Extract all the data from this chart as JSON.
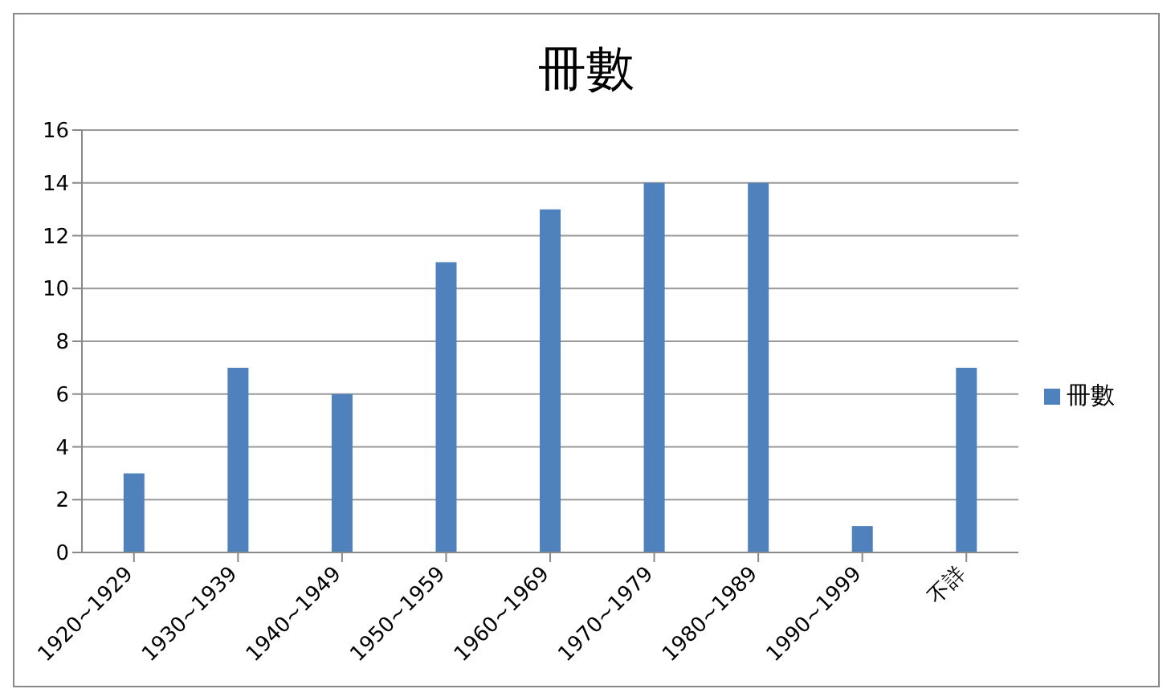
{
  "chart_data": {
    "type": "bar",
    "title": "冊數",
    "categories": [
      "1920~1929",
      "1930~1939",
      "1940~1949",
      "1950~1959",
      "1960~1969",
      "1970~1979",
      "1980~1989",
      "1990~1999",
      "不詳"
    ],
    "series": [
      {
        "name": "冊數",
        "color": "#4f81bd",
        "values": [
          3,
          7,
          6,
          11,
          13,
          14,
          14,
          1,
          7
        ]
      }
    ],
    "ylim": [
      0,
      16
    ],
    "yticks": [
      0,
      2,
      4,
      6,
      8,
      10,
      12,
      14,
      16
    ],
    "grid": "y",
    "legend": "right"
  }
}
